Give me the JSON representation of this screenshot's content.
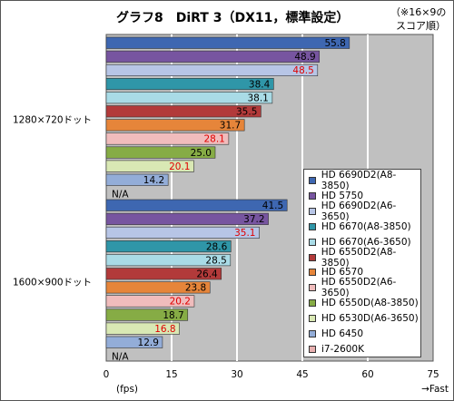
{
  "header": {
    "title": "グラフ8　DiRT 3（DX11，標準設定）",
    "note_line1": "（※16×9の",
    "note_line2": "スコア順）"
  },
  "chart_data": {
    "type": "bar",
    "orientation": "horizontal",
    "title": "グラフ8　DiRT 3（DX11，標準設定）",
    "xlabel": "(fps)",
    "x_direction_label": "→Fast",
    "xlim": [
      0,
      75
    ],
    "xticks": [
      0,
      15,
      30,
      45,
      60,
      75
    ],
    "grid": true,
    "legend_position": "right",
    "groups": [
      {
        "label": "1280×720ドット",
        "values": [
          55.8,
          48.9,
          48.5,
          38.4,
          38.1,
          35.5,
          31.7,
          28.1,
          25.0,
          20.1,
          14.2,
          "N/A"
        ]
      },
      {
        "label": "1600×900ドット",
        "values": [
          41.5,
          37.2,
          35.1,
          28.6,
          28.5,
          26.4,
          23.8,
          20.2,
          18.7,
          16.8,
          12.9,
          "N/A"
        ]
      }
    ],
    "series": [
      {
        "name": "HD 6690D2(A8-3850)",
        "color": "#3e67b1",
        "label_color": "#000000"
      },
      {
        "name": "HD 5750",
        "color": "#7755a0",
        "label_color": "#000000"
      },
      {
        "name": "HD 6690D2(A6-3650)",
        "color": "#b7c5e6",
        "label_color": "#e00000"
      },
      {
        "name": "HD 6670(A8-3850)",
        "color": "#2f96a8",
        "label_color": "#000000"
      },
      {
        "name": "HD 6670(A6-3650)",
        "color": "#a9dbe6",
        "label_color": "#000000"
      },
      {
        "name": "HD 6550D2(A8-3850)",
        "color": "#b23a3a",
        "label_color": "#000000"
      },
      {
        "name": "HD 6570",
        "color": "#e6853a",
        "label_color": "#000000"
      },
      {
        "name": "HD 6550D2(A6-3650)",
        "color": "#f0bcbc",
        "label_color": "#e00000"
      },
      {
        "name": "HD 6550D(A8-3850)",
        "color": "#86ac45",
        "label_color": "#000000"
      },
      {
        "name": "HD 6530D(A6-3650)",
        "color": "#d9e8b4",
        "label_color": "#e00000"
      },
      {
        "name": "HD 6450",
        "color": "#93add8",
        "label_color": "#000000"
      },
      {
        "name": "i7-2600K",
        "color": "#e8b0b0",
        "label_color": "#000000"
      }
    ]
  }
}
